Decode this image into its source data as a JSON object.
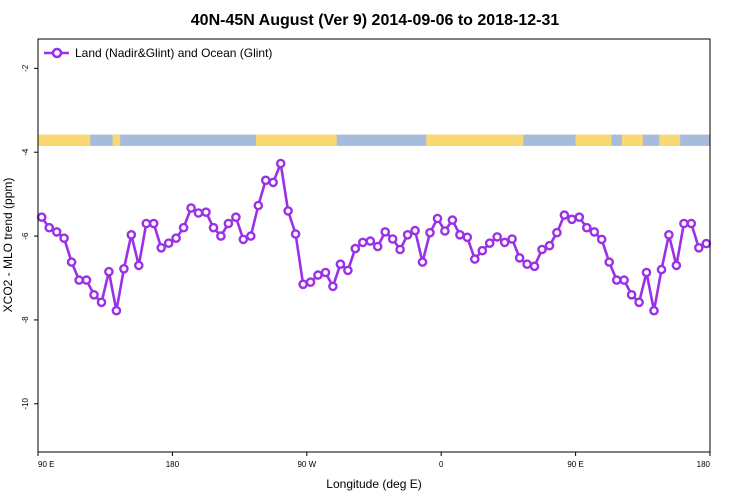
{
  "chart_data": {
    "type": "line",
    "title": "40N-45N August (Ver 9)   2014-09-06 to 2018-12-31",
    "xlabel": "Longitude (deg E)",
    "ylabel": "XCO2 - MLO trend (ppm)",
    "xlim": [
      90,
      540
    ],
    "ylim": [
      -11.15,
      -1.3
    ],
    "x_ticks": [
      {
        "value": 90,
        "label": "90 E"
      },
      {
        "value": 180,
        "label": "180"
      },
      {
        "value": 270,
        "label": "90 W"
      },
      {
        "value": 360,
        "label": "0"
      },
      {
        "value": 450,
        "label": "90 E"
      },
      {
        "value": 540,
        "label": "180"
      }
    ],
    "y_ticks": [
      {
        "value": -2,
        "label": "-2"
      },
      {
        "value": -4,
        "label": "-4"
      },
      {
        "value": -6,
        "label": "-6"
      },
      {
        "value": -8,
        "label": "-8"
      },
      {
        "value": -10,
        "label": "-10"
      }
    ],
    "legend": {
      "position": "top-left"
    },
    "colors": {
      "series": "#9b30e6",
      "ocean": "#a7bcdc",
      "land": "#fbd872"
    },
    "land_sea_band": {
      "y_range": [
        -3.85,
        -3.58
      ],
      "land_segments": [
        [
          90,
          125
        ],
        [
          140,
          145
        ],
        [
          236,
          290
        ],
        [
          350,
          415
        ],
        [
          450,
          474
        ],
        [
          481,
          495
        ],
        [
          506,
          520
        ]
      ]
    },
    "series": [
      {
        "name": "Land (Nadir&Glint) and Ocean (Glint)",
        "x": [
          92.5,
          97.5,
          102.5,
          107.5,
          112.5,
          117.5,
          122.5,
          127.5,
          132.5,
          137.5,
          142.5,
          147.5,
          152.5,
          157.5,
          162.5,
          167.5,
          172.5,
          177.5,
          182.5,
          187.5,
          192.5,
          197.5,
          202.5,
          207.5,
          212.5,
          217.5,
          222.5,
          227.5,
          232.5,
          237.5,
          242.5,
          247.5,
          252.5,
          257.5,
          262.5,
          267.5,
          272.5,
          277.5,
          282.5,
          287.5,
          292.5,
          297.5,
          302.5,
          307.5,
          312.5,
          317.5,
          322.5,
          327.5,
          332.5,
          337.5,
          342.5,
          347.5,
          352.5,
          357.5,
          362.5,
          367.5,
          372.5,
          377.5,
          382.5,
          387.5,
          392.5,
          397.5,
          402.5,
          407.5,
          412.5,
          417.5,
          422.5,
          427.5,
          432.5,
          437.5,
          442.5,
          447.5,
          452.5,
          457.5,
          462.5,
          467.5,
          472.5,
          477.5,
          482.5,
          487.5,
          492.5,
          497.5,
          502.5,
          507.5,
          512.5,
          517.5,
          522.5,
          527.5,
          532.5,
          537.5
        ],
        "values": [
          -5.55,
          -5.8,
          -5.9,
          -6.05,
          -6.62,
          -7.05,
          -7.05,
          -7.4,
          -7.58,
          -6.85,
          -7.78,
          -6.78,
          -5.97,
          -6.7,
          -5.7,
          -5.7,
          -6.28,
          -6.17,
          -6.05,
          -5.8,
          -5.33,
          -5.45,
          -5.43,
          -5.8,
          -6.0,
          -5.7,
          -5.55,
          -6.08,
          -6.0,
          -5.27,
          -4.67,
          -4.72,
          -4.27,
          -5.4,
          -5.95,
          -7.15,
          -7.1,
          -6.93,
          -6.87,
          -7.2,
          -6.67,
          -6.82,
          -6.3,
          -6.15,
          -6.12,
          -6.25,
          -5.9,
          -6.07,
          -6.32,
          -5.97,
          -5.87,
          -6.62,
          -5.92,
          -5.58,
          -5.88,
          -5.62,
          -5.97,
          -6.03,
          -6.55,
          -6.35,
          -6.17,
          -6.02,
          -6.15,
          -6.07,
          -6.52,
          -6.67,
          -6.72,
          -6.32,
          -6.23,
          -5.92,
          -5.5,
          -5.6,
          -5.55,
          -5.8,
          -5.9,
          -6.08,
          -6.62,
          -7.05,
          -7.05,
          -7.4,
          -7.58,
          -6.87,
          -7.78,
          -6.8,
          -5.97,
          -6.7,
          -5.7,
          -5.7,
          -6.28,
          -6.18
        ]
      }
    ]
  }
}
